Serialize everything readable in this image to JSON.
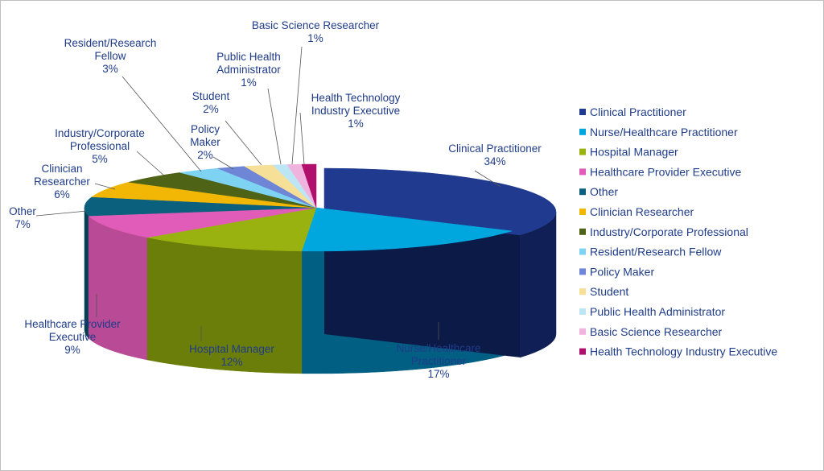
{
  "chart_data": {
    "type": "pie",
    "style": "3d-exploded",
    "legend_position": "right",
    "title": "",
    "slices": [
      {
        "name": "Clinical Practitioner",
        "value": 34,
        "label": "34%",
        "color": "#1f3a8f",
        "side_color": "#101f55"
      },
      {
        "name": "Nurse/Healthcare Practitioner",
        "value": 17,
        "label": "17%",
        "color": "#00a6de",
        "side_color": "#005f82"
      },
      {
        "name": "Hospital Manager",
        "value": 12,
        "label": "12%",
        "color": "#9ab20f",
        "side_color": "#6c7e0a"
      },
      {
        "name": "Healthcare Provider Executive",
        "value": 9,
        "label": "9%",
        "color": "#e05cb8",
        "side_color": "#b84a96"
      },
      {
        "name": "Other",
        "value": 7,
        "label": "7%",
        "color": "#0b617d",
        "side_color": "#073f52"
      },
      {
        "name": "Clinician Researcher",
        "value": 6,
        "label": "6%",
        "color": "#f2b705",
        "side_color": "#b98b00"
      },
      {
        "name": "Industry/Corporate Professional",
        "value": 5,
        "label": "5%",
        "color": "#4e6316",
        "side_color": "#34430e"
      },
      {
        "name": "Resident/Research Fellow",
        "value": 3,
        "label": "3%",
        "color": "#7fd3f2",
        "side_color": "#58a9c6"
      },
      {
        "name": "Policy Maker",
        "value": 2,
        "label": "2%",
        "color": "#6f86d6",
        "side_color": "#4e63a8"
      },
      {
        "name": "Student",
        "value": 2,
        "label": "2%",
        "color": "#f6df96",
        "side_color": "#c7b06c"
      },
      {
        "name": "Public Health Administrator",
        "value": 1,
        "label": "1%",
        "color": "#bde6f5",
        "side_color": "#8fbdcd"
      },
      {
        "name": "Basic Science Researcher",
        "value": 1,
        "label": "1%",
        "color": "#f0b3de",
        "side_color": "#c98bb8"
      },
      {
        "name": "Health Technology Industry Executive",
        "value": 1,
        "label": "1%",
        "color": "#b0106c",
        "side_color": "#7a0a4a"
      }
    ],
    "callout_names": {
      "Clinical Practitioner": [
        "Clinical Practitioner"
      ],
      "Nurse/Healthcare Practitioner": [
        "Nurse/Healthcare",
        "Practitioner"
      ],
      "Hospital Manager": [
        "Hospital Manager"
      ],
      "Healthcare Provider Executive": [
        "Healthcare Provider",
        "Executive"
      ],
      "Other": [
        "Other"
      ],
      "Clinician Researcher": [
        "Clinician",
        "Researcher"
      ],
      "Industry/Corporate Professional": [
        "Industry/Corporate",
        "Professional"
      ],
      "Resident/Research Fellow": [
        "Resident/Research",
        "Fellow"
      ],
      "Policy Maker": [
        "Policy",
        "Maker"
      ],
      "Student": [
        "Student"
      ],
      "Public Health Administrator": [
        "Public Health",
        "Administrator"
      ],
      "Basic Science Researcher": [
        "Basic Science Researcher"
      ],
      "Health Technology Industry Executive": [
        "Health Technology",
        "Industry Executive"
      ]
    }
  }
}
